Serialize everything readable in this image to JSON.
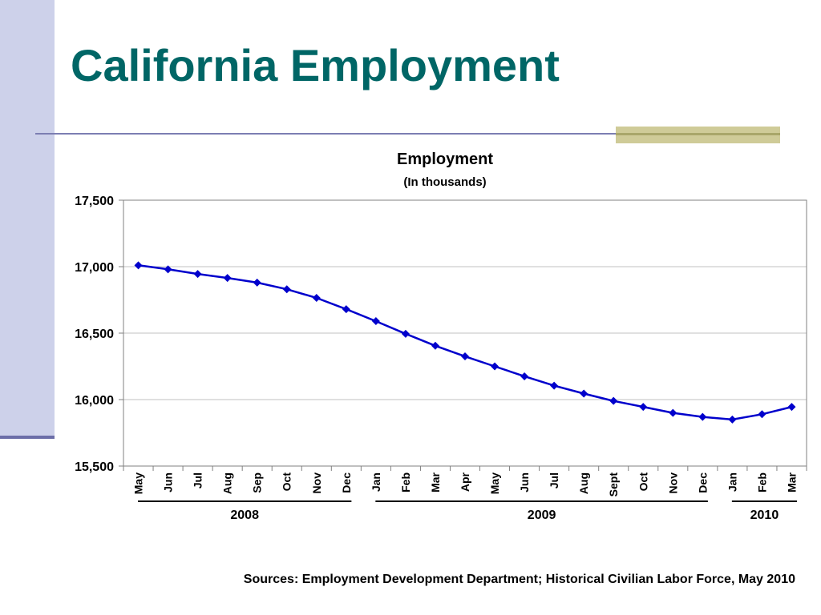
{
  "slide": {
    "title": "California Employment",
    "sources": "Sources: Employment Development Department; Historical Civilian Labor Force, May 2010"
  },
  "colors": {
    "title": "#006666",
    "series": "#0000cc",
    "left_bar": "#cdd1ea",
    "accent": "#cfcb98"
  },
  "chart_data": {
    "type": "line",
    "title": "Employment",
    "subtitle": "(In thousands)",
    "xlabel": "",
    "ylabel": "",
    "ylim": [
      15500,
      17500
    ],
    "yticks": [
      15500,
      16000,
      16500,
      17000,
      17500
    ],
    "ytick_labels": [
      "15,500",
      "16,000",
      "16,500",
      "17,000",
      "17,500"
    ],
    "grid": true,
    "legend": "none",
    "categories": [
      "May",
      "Jun",
      "Jul",
      "Aug",
      "Sep",
      "Oct",
      "Nov",
      "Dec",
      "Jan",
      "Feb",
      "Mar",
      "Apr",
      "May",
      "Jun",
      "Jul",
      "Aug",
      "Sept",
      "Oct",
      "Nov",
      "Dec",
      "Jan",
      "Feb",
      "Mar"
    ],
    "values": [
      17010,
      16980,
      16945,
      16915,
      16880,
      16830,
      16765,
      16680,
      16590,
      16495,
      16405,
      16325,
      16250,
      16175,
      16105,
      16045,
      15990,
      15945,
      15900,
      15870,
      15850,
      15890,
      15945
    ],
    "year_groups": [
      {
        "label": "2008",
        "start": 0,
        "end": 7
      },
      {
        "label": "2009",
        "start": 8,
        "end": 19
      },
      {
        "label": "2010",
        "start": 20,
        "end": 22
      }
    ]
  }
}
